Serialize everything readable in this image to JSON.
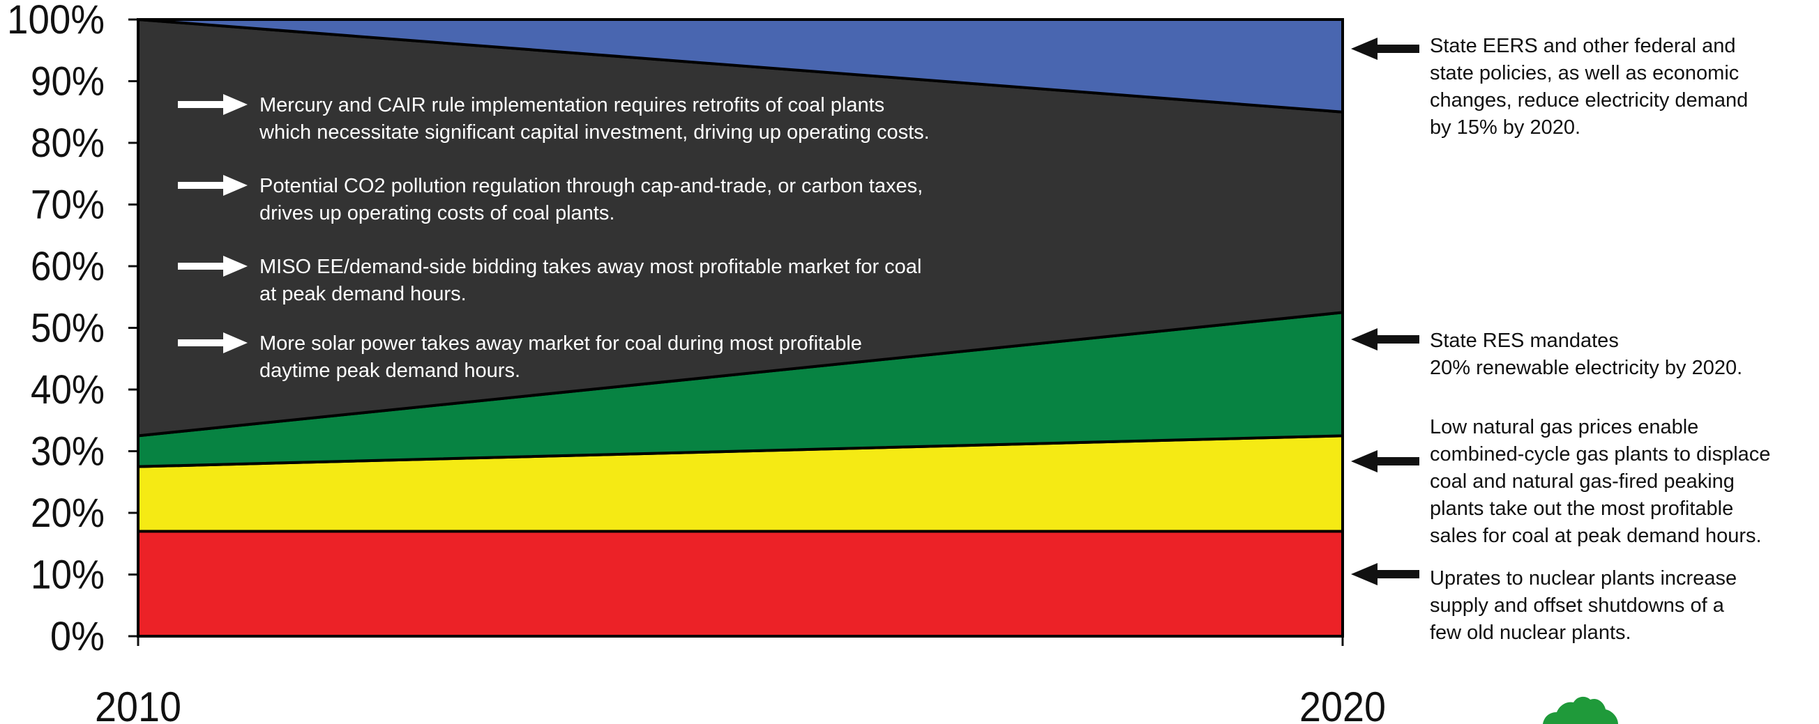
{
  "chart_data": {
    "type": "area",
    "stacked": true,
    "x": [
      2010,
      2020
    ],
    "x_tick_labels": [
      "2010",
      "2020"
    ],
    "ylim": [
      0,
      100
    ],
    "y_tick_labels": [
      "0%",
      "10%",
      "20%",
      "30%",
      "40%",
      "50%",
      "60%",
      "70%",
      "80%",
      "90%",
      "100%"
    ],
    "grid": false,
    "title": "",
    "xlabel": "",
    "ylabel": "",
    "series": [
      {
        "values": [
          17,
          17
        ],
        "color": "#ec2227"
      },
      {
        "values": [
          10.5,
          15.5
        ],
        "color": "#f5ea14"
      },
      {
        "values": [
          5,
          20
        ],
        "color": "#078342"
      },
      {
        "values": [
          67.5,
          32.5
        ],
        "color": "#333333"
      },
      {
        "values": [
          0,
          15
        ],
        "color": "#4966b0"
      }
    ],
    "annotations_inside": [
      {
        "line1": "Mercury and CAIR rule implementation requires retrofits of coal plants",
        "line2": "which necessitate significant capital investment, driving up operating costs."
      },
      {
        "line1": "Potential CO2 pollution regulation through cap-and-trade, or carbon taxes,",
        "line2": "drives up operating costs of coal plants."
      },
      {
        "line1": "MISO EE/demand-side bidding takes away most profitable market for coal",
        "line2": "at peak demand hours."
      },
      {
        "line1": "More solar power takes away market for coal during most profitable",
        "line2": "daytime peak demand hours."
      }
    ],
    "annotations_right": [
      {
        "lines": [
          "State EERS and other federal and",
          "state policies, as well as economic",
          "changes, reduce electricity demand",
          "by 15% by 2020."
        ]
      },
      {
        "lines": [
          "State RES mandates",
          "20% renewable electricity by 2020."
        ]
      },
      {
        "lines": [
          "Low natural gas prices enable",
          "combined-cycle gas plants to displace",
          "coal and natural gas-fired peaking",
          "plants take out the most profitable",
          "sales for coal at peak demand hours."
        ]
      },
      {
        "lines": [
          "Uprates to nuclear plants increase",
          "supply and offset shutdowns of a",
          "few old nuclear plants."
        ]
      }
    ]
  },
  "logo": {
    "icon": "tree-logo-icon",
    "color": "#1f9a3a"
  }
}
